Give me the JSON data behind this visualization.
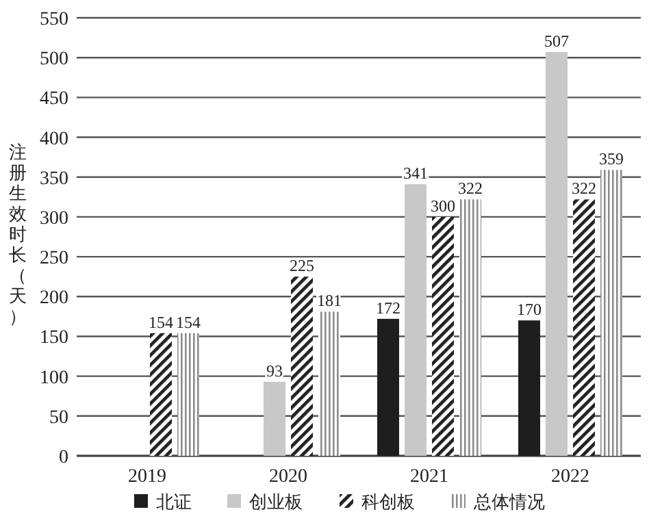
{
  "chart_data": {
    "type": "bar",
    "ylabel": "注册生效时长（天）",
    "categories": [
      "2019",
      "2020",
      "2021",
      "2022"
    ],
    "series": [
      {
        "name": "北证",
        "color": "#1e1e1e",
        "values": [
          null,
          null,
          172,
          170
        ]
      },
      {
        "name": "创业板",
        "color": "#c8c8c8",
        "values": [
          null,
          93,
          341,
          507
        ]
      },
      {
        "name": "科创板",
        "color": "#222222",
        "values": [
          154,
          225,
          300,
          322
        ]
      },
      {
        "name": "总体情况",
        "color": "#8c8c8c",
        "values": [
          154,
          181,
          322,
          359
        ]
      }
    ],
    "ylim": [
      0,
      550
    ],
    "yticks": [
      0,
      50,
      100,
      150,
      200,
      250,
      300,
      350,
      400,
      450,
      500,
      550
    ],
    "grid": "y",
    "legend": "bottom",
    "data_labels": true
  }
}
